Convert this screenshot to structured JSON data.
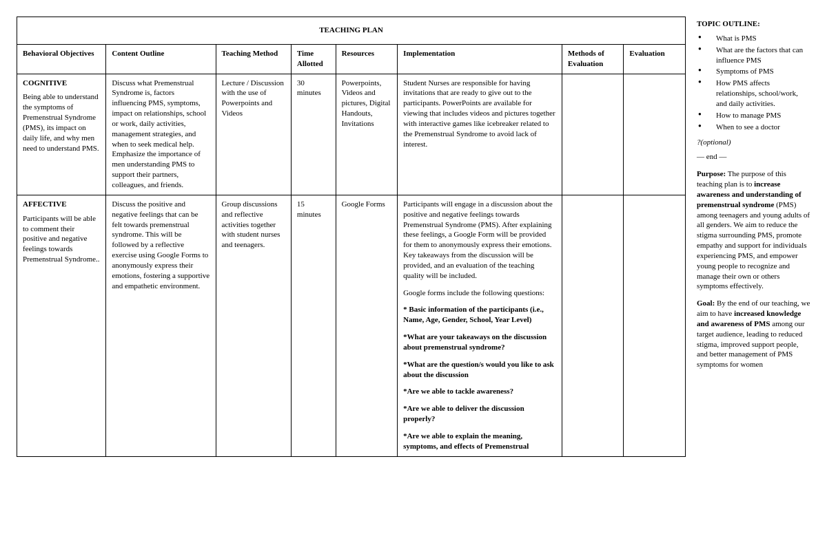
{
  "table": {
    "title": "TEACHING PLAN",
    "headers": {
      "c1": "Behavioral Objectives",
      "c2": "Content Outline",
      "c3": "Teaching Method",
      "c4": "Time Allotted",
      "c5": "Resources",
      "c6": "Implementation",
      "c7": "Methods of Evaluation",
      "c8": "Evaluation"
    },
    "rows": [
      {
        "domain": "COGNITIVE",
        "objective": "Being able to understand the symptoms of Premenstrual Syndrome (PMS), its impact on daily life, and why men need to understand PMS.",
        "content": "Discuss what Premenstrual Syndrome is, factors influencing PMS, symptoms, impact on relationships, school or work, daily activities, management strategies, and when to seek medical help. Emphasize the importance of men understanding PMS to support their partners, colleagues, and friends.",
        "method": "Lecture / Discussion with the use of Powerpoints and Videos",
        "time": "30 minutes",
        "resources": "Powerpoints, Videos and pictures, Digital Handouts, Invitations",
        "implementation_plain": "Student Nurses are responsible for having invitations that are ready to give out to the participants. PowerPoints are available for viewing that includes videos and pictures together with interactive games like icebreaker related to the Premenstrual Syndrome to avoid lack of interest.",
        "methods_eval": "",
        "evaluation": ""
      },
      {
        "domain": "AFFECTIVE",
        "objective": "Participants will be able to comment  their positive and negative feelings towards Premenstrual Syndrome..",
        "content": "Discuss the positive and negative feelings that can be felt towards premenstrual syndrome. This will be followed by a reflective exercise using Google Forms to anonymously express their emotions, fostering a supportive and empathetic environment.",
        "method": "Group discussions and reflective activities together with student nurses and teenagers.",
        "time": "15 minutes",
        "resources": "Google Forms",
        "implementation_intro_1": "Participants will engage in a discussion about the positive and negative feelings towards Premenstrual Syndrome (PMS). After explaining these feelings, a Google Form will be provided for them to anonymously express their emotions. Key takeaways from the discussion will be provided, and an evaluation of the teaching quality will be included.",
        "implementation_intro_2": "Google forms include the following questions:",
        "questions": [
          "* Basic information of the participants (i.e., Name, Age, Gender, School, Year Level)",
          "*What are your takeaways on the discussion about premenstrual syndrome?",
          "*What are the question/s would you like to ask about the discussion",
          "*Are we able to tackle awareness?",
          "*Are we able to deliver the discussion properly?",
          "*Are we able to explain the meaning, symptoms, and effects of Premenstrual"
        ],
        "methods_eval": "",
        "evaluation": ""
      }
    ]
  },
  "sidebar": {
    "heading": "TOPIC OUTLINE:",
    "items": [
      "What is PMS",
      "What are the factors that can influence PMS",
      "Symptoms of PMS",
      "How PMS affects relationships, school/work, and daily activities.",
      "How to manage PMS",
      "When to see a doctor"
    ],
    "optional": "?(optional)",
    "end": "— end —",
    "purpose_label": "Purpose:",
    "purpose_text_1": " The purpose of this teaching plan is to ",
    "purpose_bold": "increase awareness and understanding of premenstrual syndrome",
    "purpose_text_2": " (PMS) among teenagers and young adults of all genders. We aim to reduce the stigma surrounding PMS, promote empathy and support for individuals experiencing PMS, and empower young people to recognize and manage their own or others symptoms effectively.",
    "goal_label": "Goal:",
    "goal_text_1": " By the end of our teaching, we aim to have ",
    "goal_bold": "increased knowledge and awareness of PMS",
    "goal_text_2": " among our target audience, leading to reduced stigma, improved support people, and better management of PMS symptoms for women"
  }
}
